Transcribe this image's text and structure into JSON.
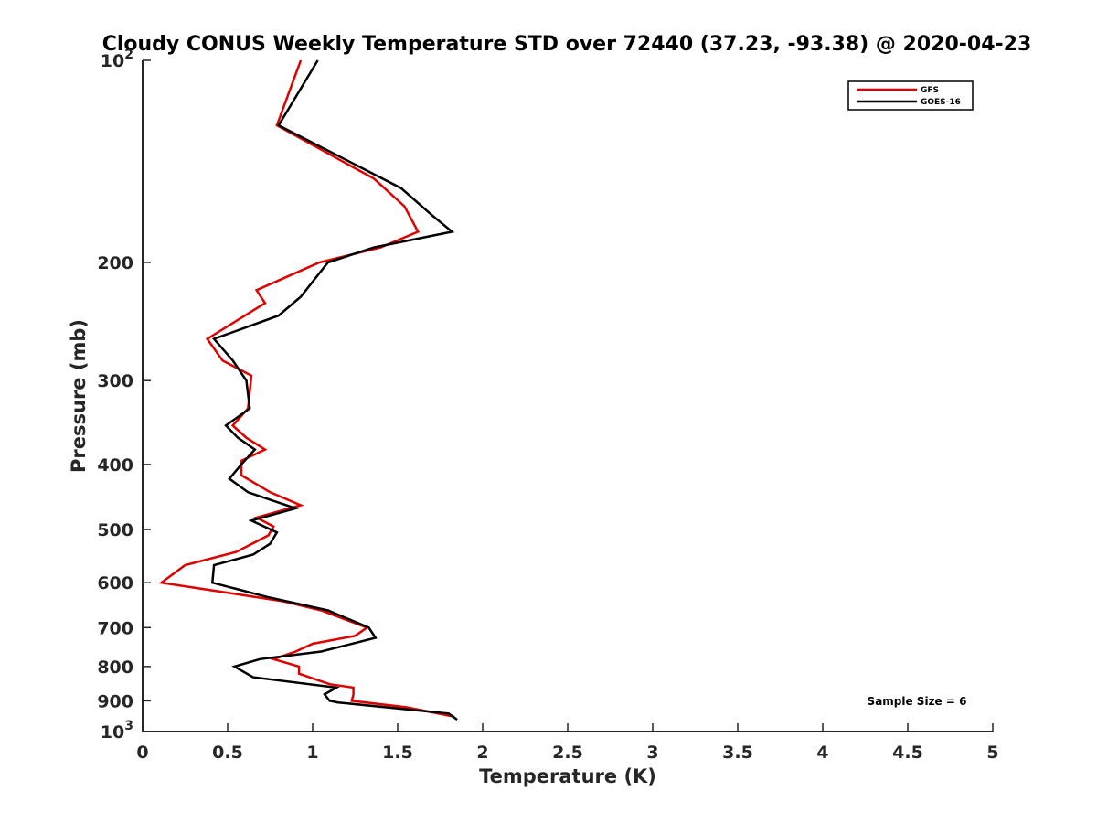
{
  "chart_data": {
    "type": "line",
    "title": "Cloudy CONUS Weekly Temperature STD over 72440 (37.23, -93.38) @ 2020-04-23",
    "xlabel": "Temperature (K)",
    "ylabel": "Pressure (mb)",
    "xlim": [
      0,
      5
    ],
    "ylim": [
      100,
      1000
    ],
    "y_scale": "log",
    "y_reversed": true,
    "x_ticks": [
      0,
      0.5,
      1,
      1.5,
      2,
      2.5,
      3,
      3.5,
      4,
      4.5,
      5
    ],
    "x_tick_labels": [
      "0",
      "0.5",
      "1",
      "1.5",
      "2",
      "2.5",
      "3",
      "3.5",
      "4",
      "4.5",
      "5"
    ],
    "y_ticks": [
      {
        "value": 100,
        "base": "10",
        "exp": "2"
      },
      {
        "value": 200,
        "label": "200"
      },
      {
        "value": 300,
        "label": "300"
      },
      {
        "value": 400,
        "label": "400"
      },
      {
        "value": 500,
        "label": "500"
      },
      {
        "value": 600,
        "label": "600"
      },
      {
        "value": 700,
        "label": "700"
      },
      {
        "value": 800,
        "label": "800"
      },
      {
        "value": 900,
        "label": "900"
      },
      {
        "value": 1000,
        "base": "10",
        "exp": "3"
      }
    ],
    "grid": false,
    "legend_position": "top-right",
    "annotation": "Sample Size = 6",
    "series": [
      {
        "name": "GFS",
        "color": "#e00000",
        "points": [
          [
            0.93,
            100
          ],
          [
            0.79,
            125
          ],
          [
            1.36,
            150
          ],
          [
            1.54,
            165
          ],
          [
            1.62,
            180
          ],
          [
            1.4,
            190
          ],
          [
            1.04,
            200
          ],
          [
            0.67,
            220
          ],
          [
            0.72,
            230
          ],
          [
            0.38,
            260
          ],
          [
            0.47,
            280
          ],
          [
            0.64,
            295
          ],
          [
            0.62,
            330
          ],
          [
            0.53,
            350
          ],
          [
            0.61,
            365
          ],
          [
            0.72,
            380
          ],
          [
            0.58,
            395
          ],
          [
            0.58,
            415
          ],
          [
            0.75,
            440
          ],
          [
            0.93,
            460
          ],
          [
            0.67,
            480
          ],
          [
            0.77,
            495
          ],
          [
            0.74,
            510
          ],
          [
            0.55,
            540
          ],
          [
            0.25,
            565
          ],
          [
            0.11,
            600
          ],
          [
            0.48,
            620
          ],
          [
            0.83,
            640
          ],
          [
            1.05,
            660
          ],
          [
            1.32,
            700
          ],
          [
            1.25,
            720
          ],
          [
            1.0,
            740
          ],
          [
            0.9,
            760
          ],
          [
            0.77,
            780
          ],
          [
            0.92,
            800
          ],
          [
            0.92,
            820
          ],
          [
            1.1,
            850
          ],
          [
            1.24,
            860
          ],
          [
            1.24,
            880
          ],
          [
            1.23,
            900
          ],
          [
            1.55,
            920
          ],
          [
            1.83,
            950
          ]
        ]
      },
      {
        "name": "GOES-16",
        "color": "#000000",
        "points": [
          [
            1.03,
            100
          ],
          [
            0.8,
            125
          ],
          [
            1.52,
            155
          ],
          [
            1.7,
            170
          ],
          [
            1.82,
            180
          ],
          [
            1.36,
            190
          ],
          [
            1.09,
            200
          ],
          [
            0.93,
            225
          ],
          [
            0.8,
            240
          ],
          [
            0.42,
            260
          ],
          [
            0.53,
            280
          ],
          [
            0.61,
            300
          ],
          [
            0.63,
            330
          ],
          [
            0.49,
            350
          ],
          [
            0.56,
            365
          ],
          [
            0.66,
            380
          ],
          [
            0.58,
            400
          ],
          [
            0.51,
            420
          ],
          [
            0.62,
            440
          ],
          [
            0.9,
            465
          ],
          [
            0.64,
            485
          ],
          [
            0.79,
            505
          ],
          [
            0.75,
            525
          ],
          [
            0.65,
            545
          ],
          [
            0.42,
            565
          ],
          [
            0.41,
            600
          ],
          [
            0.73,
            630
          ],
          [
            1.09,
            660
          ],
          [
            1.33,
            700
          ],
          [
            1.37,
            725
          ],
          [
            1.05,
            760
          ],
          [
            0.69,
            780
          ],
          [
            0.54,
            800
          ],
          [
            0.65,
            830
          ],
          [
            1.14,
            860
          ],
          [
            1.07,
            880
          ],
          [
            1.1,
            900
          ],
          [
            1.15,
            905
          ],
          [
            1.8,
            940
          ],
          [
            1.85,
            960
          ]
        ]
      }
    ]
  },
  "colors": {
    "axis": "#262626",
    "background": "#ffffff"
  }
}
